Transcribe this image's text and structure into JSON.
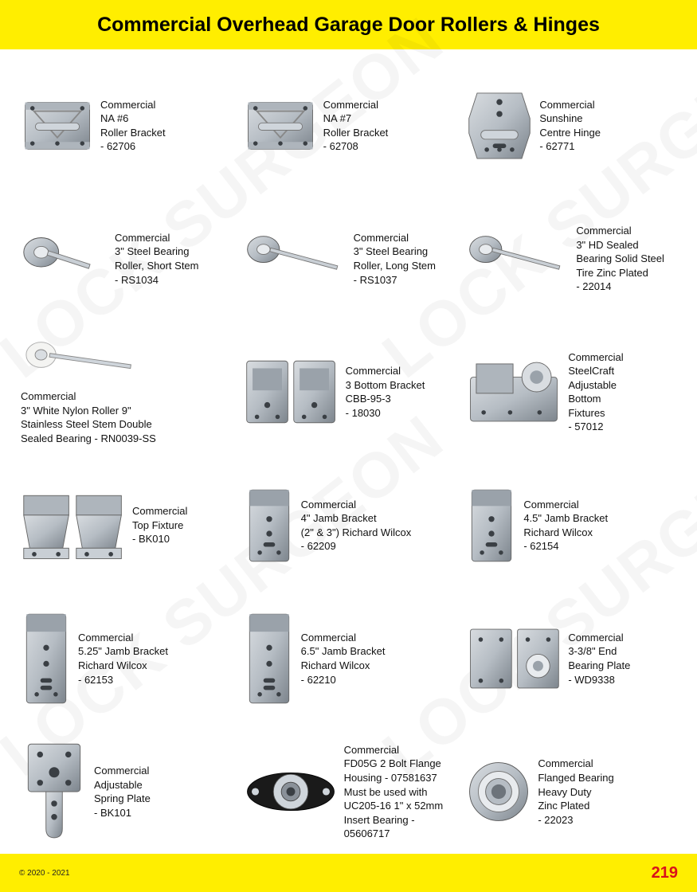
{
  "page": {
    "title": "Commercial Overhead Garage Door Rollers & Hinges",
    "page_number": "219",
    "copyright": "© 2020 - 2021",
    "watermark_text": "LOCK SURGEON",
    "colors": {
      "header_bg": "#ffee00",
      "header_text": "#000000",
      "footer_bg": "#ffee00",
      "page_num": "#d9121a",
      "body_text": "#111111",
      "metal_light": "#d8dce0",
      "metal_mid": "#b6bdc4",
      "metal_dark": "#7d858d",
      "nylon_white": "#f4f4f2",
      "black": "#1a1a1a"
    }
  },
  "items": [
    {
      "lines": [
        "Commercial",
        "NA #6",
        "Roller Bracket",
        "- 62706"
      ],
      "shape": "bracket_plate"
    },
    {
      "lines": [
        "Commercial",
        "NA #7",
        "Roller Bracket",
        "- 62708"
      ],
      "shape": "bracket_plate"
    },
    {
      "lines": [
        "Commercial",
        "Sunshine",
        "Centre Hinge",
        "- 62771"
      ],
      "shape": "centre_hinge"
    },
    {
      "lines": [
        "Commercial",
        "3\" Steel Bearing",
        "Roller, Short Stem",
        "- RS1034"
      ],
      "shape": "roller_short"
    },
    {
      "lines": [
        "Commercial",
        "3\" Steel Bearing",
        "Roller, Long Stem",
        "- RS1037"
      ],
      "shape": "roller_long"
    },
    {
      "lines": [
        "Commercial",
        "3\" HD Sealed",
        "Bearing Solid Steel",
        "Tire Zinc Plated",
        "- 22014"
      ],
      "shape": "roller_long"
    },
    {
      "lines": [
        "Commercial",
        "3\" White Nylon Roller 9\"",
        "Stainless Steel Stem Double",
        "Sealed Bearing - RN0039-SS"
      ],
      "shape": "roller_nylon",
      "layout": "stack"
    },
    {
      "lines": [
        "Commercial",
        "3 Bottom Bracket",
        "CBB-95-3",
        "- 18030"
      ],
      "shape": "bottom_bracket_pair"
    },
    {
      "lines": [
        "Commercial",
        "SteelCraft",
        "Adjustable",
        "Bottom",
        "Fixtures",
        "- 57012"
      ],
      "shape": "adjustable_bottom"
    },
    {
      "lines": [
        "Commercial",
        "Top Fixture",
        "- BK010"
      ],
      "shape": "top_fixture_pair"
    },
    {
      "lines": [
        "Commercial",
        "4\" Jamb Bracket",
        "(2\" & 3\") Richard Wilcox",
        "- 62209"
      ],
      "shape": "jamb_short"
    },
    {
      "lines": [
        "Commercial",
        "4.5\" Jamb Bracket",
        "Richard Wilcox",
        "- 62154"
      ],
      "shape": "jamb_short"
    },
    {
      "lines": [
        "Commercial",
        "5.25\" Jamb Bracket",
        "Richard Wilcox",
        "- 62153"
      ],
      "shape": "jamb_tall"
    },
    {
      "lines": [
        "Commercial",
        "6.5\" Jamb Bracket",
        "Richard Wilcox",
        "- 62210"
      ],
      "shape": "jamb_tall"
    },
    {
      "lines": [
        "Commercial",
        "3-3/8\" End",
        "Bearing Plate",
        "- WD9338"
      ],
      "shape": "end_bearing_plate"
    },
    {
      "lines": [
        "Commercial",
        "Adjustable",
        "Spring Plate",
        "- BK101"
      ],
      "shape": "spring_plate"
    },
    {
      "lines": [
        "Commercial",
        "FD05G 2 Bolt Flange",
        "Housing - 07581637",
        "Must be used with",
        "UC205-16 1\" x 52mm",
        "Insert Bearing - 05606717"
      ],
      "shape": "flange_housing"
    },
    {
      "lines": [
        "Commercial",
        "Flanged Bearing",
        "Heavy Duty",
        "Zinc Plated",
        "- 22023"
      ],
      "shape": "flanged_bearing"
    }
  ]
}
